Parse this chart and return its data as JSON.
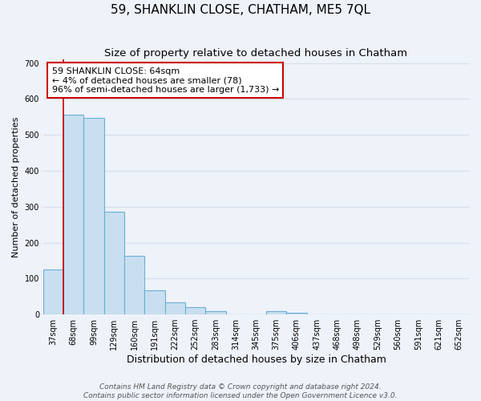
{
  "title": "59, SHANKLIN CLOSE, CHATHAM, ME5 7QL",
  "subtitle": "Size of property relative to detached houses in Chatham",
  "xlabel": "Distribution of detached houses by size in Chatham",
  "ylabel": "Number of detached properties",
  "bar_labels": [
    "37sqm",
    "68sqm",
    "99sqm",
    "129sqm",
    "160sqm",
    "191sqm",
    "222sqm",
    "252sqm",
    "283sqm",
    "314sqm",
    "345sqm",
    "375sqm",
    "406sqm",
    "437sqm",
    "468sqm",
    "498sqm",
    "529sqm",
    "560sqm",
    "591sqm",
    "621sqm",
    "652sqm"
  ],
  "bar_values": [
    125,
    557,
    548,
    285,
    163,
    68,
    33,
    20,
    10,
    0,
    0,
    10,
    5,
    0,
    0,
    0,
    0,
    0,
    0,
    0,
    0
  ],
  "bar_color": "#c8dff0",
  "bar_edge_color": "#6aaed6",
  "property_line_x": 0.5,
  "annotation_title": "59 SHANKLIN CLOSE: 64sqm",
  "annotation_line1": "← 4% of detached houses are smaller (78)",
  "annotation_line2": "96% of semi-detached houses are larger (1,733) →",
  "annotation_box_color": "#ffffff",
  "annotation_box_edge": "#cc0000",
  "ylim": [
    0,
    710
  ],
  "footer1": "Contains HM Land Registry data © Crown copyright and database right 2024.",
  "footer2": "Contains public sector information licensed under the Open Government Licence v3.0.",
  "bg_color": "#eef2f9",
  "grid_color": "#d8e0ee",
  "title_fontsize": 11,
  "subtitle_fontsize": 9.5,
  "xlabel_fontsize": 9,
  "ylabel_fontsize": 8,
  "tick_fontsize": 7,
  "footer_fontsize": 6.5,
  "annotation_fontsize": 8
}
